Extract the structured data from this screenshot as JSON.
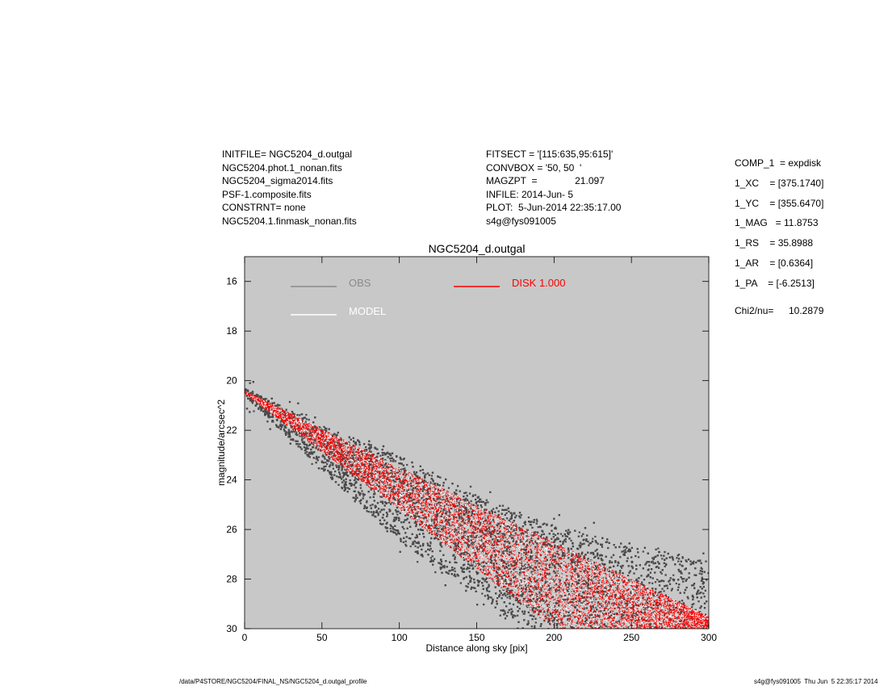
{
  "header_left": [
    "INITFILE= NGC5204_d.outgal",
    "NGC5204.phot.1_nonan.fits",
    "NGC5204_sigma2014.fits",
    "PSF-1.composite.fits",
    "CONSTRNT= none",
    "NGC5204.1.finmask_nonan.fits"
  ],
  "header_mid": [
    "FITSECT = '[115:635,95:615]'",
    "CONVBOX = '50, 50  '",
    "MAGZPT  =              21.097",
    "INFILE: 2014-Jun- 5",
    "PLOT:  5-Jun-2014 22:35:17.00",
    "s4g@fys091005"
  ],
  "params": [
    "COMP_1  = expdisk",
    "1_XC    = [375.1740]",
    "1_YC    = [355.6470]",
    "1_MAG   = 11.8753",
    "1_RS    = 35.8988",
    "1_AR    = [0.6364]",
    "1_PA    = [-6.2513]"
  ],
  "chi2_label": "Chi2/nu=",
  "chi2_value": "10.2879",
  "footer_left": "/data/P4STORE/NGC5204/FINAL_NS/NGC5204_d.outgal_profile",
  "footer_right": "s4g@fys091005  Thu Jun  5 22:35:17 2014",
  "colors": {
    "plot_bg": "#c8c8c8",
    "obs": "#4a4a4a",
    "obs_legend": "#8a8a8a",
    "model": "#ffffff",
    "disk": "#ff0000"
  },
  "chart_data": {
    "type": "scatter",
    "title": "NGC5204_d.outgal",
    "xlabel": "Distance along sky [pix]",
    "ylabel": "magnitude/arcsec^2",
    "xlim": [
      0,
      300
    ],
    "ylim": [
      30,
      15
    ],
    "y_inverted": true,
    "xticks": [
      0,
      50,
      100,
      150,
      200,
      250,
      300
    ],
    "yticks": [
      16,
      18,
      20,
      22,
      24,
      26,
      28,
      30
    ],
    "legend": [
      {
        "label": "OBS",
        "color": "#8a8a8a"
      },
      {
        "label": "DISK  1.000",
        "color": "#ff0000"
      },
      {
        "label": "MODEL",
        "color": "#ffffff"
      }
    ],
    "series": [
      {
        "name": "OBS",
        "kind": "band",
        "color": "#4a4a4a",
        "upper_edge": [
          [
            0,
            20.3
          ],
          [
            50,
            21.8
          ],
          [
            100,
            23.0
          ],
          [
            150,
            24.6
          ],
          [
            200,
            25.8
          ],
          [
            250,
            26.6
          ],
          [
            300,
            27.2
          ]
        ],
        "lower_edge": [
          [
            0,
            20.6
          ],
          [
            50,
            23.6
          ],
          [
            100,
            26.5
          ],
          [
            150,
            28.6
          ],
          [
            180,
            30.0
          ]
        ],
        "scatter": "+/-0.6 mag"
      },
      {
        "name": "MODEL",
        "kind": "band",
        "color": "#ffffff",
        "upper_edge": [
          [
            0,
            20.4
          ],
          [
            100,
            23.5
          ],
          [
            200,
            26.5
          ],
          [
            260,
            28.3
          ],
          [
            300,
            29.5
          ]
        ],
        "lower_edge": [
          [
            0,
            20.5
          ],
          [
            100,
            25.2
          ],
          [
            200,
            30.0
          ],
          [
            288,
            30.0
          ]
        ]
      },
      {
        "name": "DISK  1.000",
        "kind": "band",
        "color": "#ff0000",
        "upper_edge": [
          [
            0,
            20.4
          ],
          [
            100,
            23.5
          ],
          [
            200,
            26.5
          ],
          [
            260,
            28.3
          ],
          [
            300,
            29.5
          ]
        ],
        "lower_edge": [
          [
            0,
            20.5
          ],
          [
            100,
            25.2
          ],
          [
            200,
            30.0
          ],
          [
            288,
            30.0
          ]
        ]
      }
    ]
  }
}
